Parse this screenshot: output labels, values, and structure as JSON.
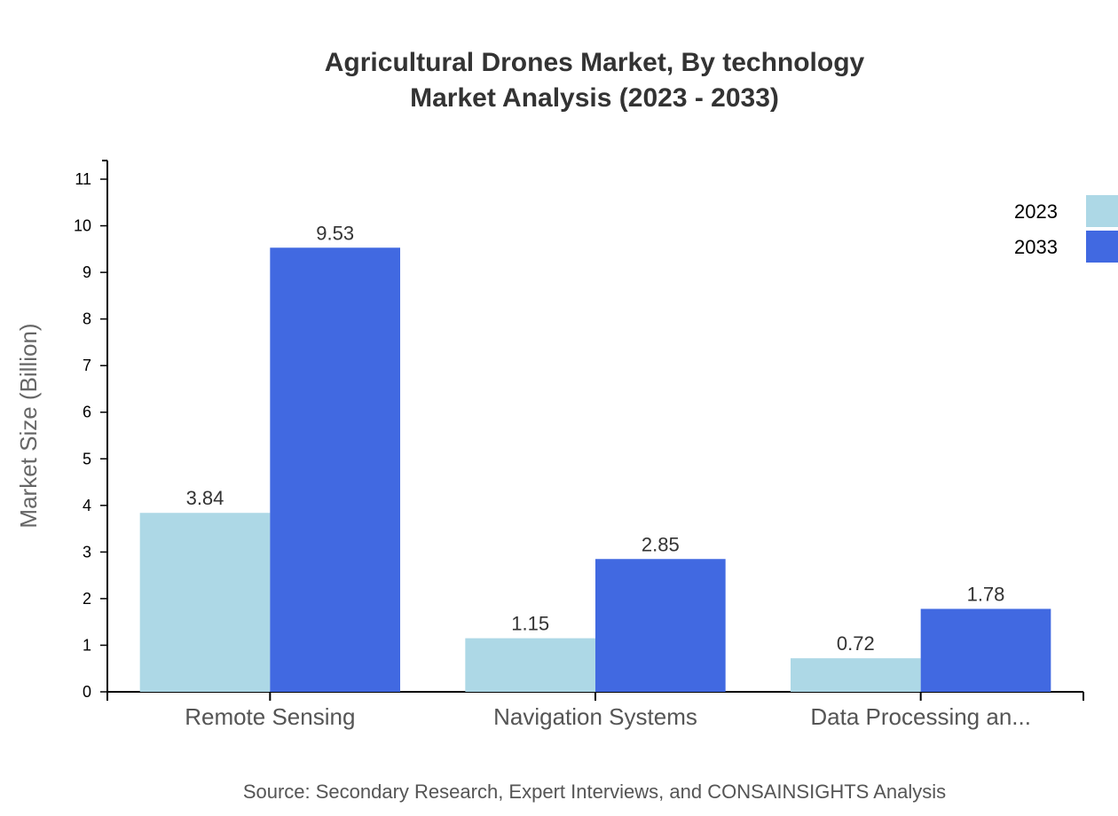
{
  "chart_data": {
    "type": "bar",
    "title": "Agricultural Drones Market, By technology",
    "subtitle": "Market Analysis (2023 - 2033)",
    "xlabel": "",
    "ylabel": "Market Size (Billion)",
    "categories": [
      "Remote Sensing",
      "Navigation Systems",
      "Data Processing an..."
    ],
    "series": [
      {
        "name": "2023",
        "color": "#ADD8E6",
        "values": [
          3.84,
          1.15,
          0.72
        ]
      },
      {
        "name": "2033",
        "color": "#4169E1",
        "values": [
          9.53,
          2.85,
          1.78
        ]
      }
    ],
    "ylim": [
      0,
      11.4
    ],
    "yticks": [
      0,
      1,
      2,
      3,
      4,
      5,
      6,
      7,
      8,
      9,
      10,
      11
    ],
    "grid": false,
    "legend": "top-right",
    "source": "Source: Secondary Research, Expert Interviews, and CONSAINSIGHTS Analysis"
  }
}
